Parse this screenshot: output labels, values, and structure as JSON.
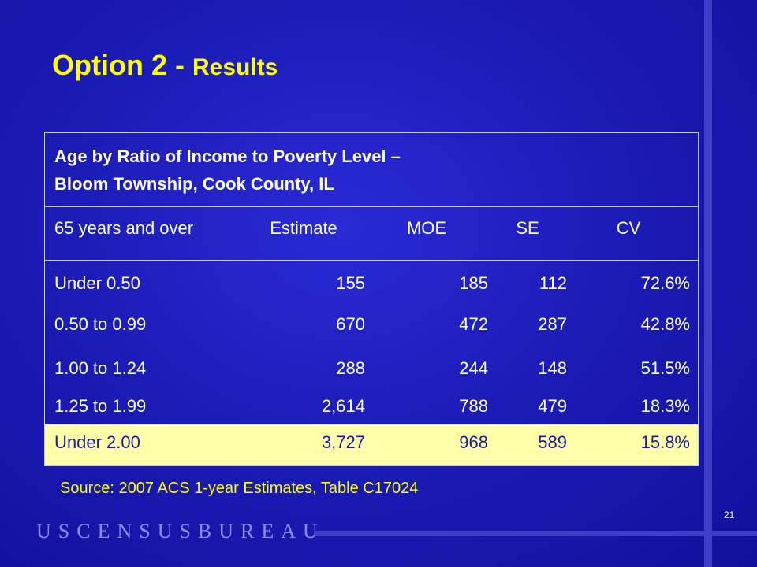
{
  "title": {
    "main": "Option 2 - ",
    "sub": "Results"
  },
  "table": {
    "caption_line1": "Age by Ratio of Income to Poverty Level –",
    "caption_line2": "Bloom Township, Cook County, IL",
    "columns": [
      "65 years and over",
      "Estimate",
      "MOE",
      "SE",
      "CV"
    ],
    "rows": [
      [
        "Under 0.50",
        "155",
        "185",
        "112",
        "72.6%"
      ],
      [
        "0.50 to 0.99",
        "670",
        "472",
        "287",
        "42.8%"
      ],
      [
        "1.00 to 1.24",
        "288",
        "244",
        "148",
        "51.5%"
      ],
      [
        "1.25 to 1.99",
        "2,614",
        "788",
        "479",
        "18.3%"
      ],
      [
        "Under 2.00",
        "3,727",
        "968",
        "589",
        "15.8%"
      ]
    ],
    "highlight_row_index": 4,
    "highlight_color": "#ffffaa"
  },
  "source": "Source:  2007 ACS 1-year Estimates, Table C17024",
  "page_number": "21",
  "logo_text": "USCENSUSBUREAU",
  "colors": {
    "background": "#1c1cb8",
    "title": "#ffff00",
    "accent_bar": "#3e3ec8",
    "logo": "#8c8cff"
  }
}
